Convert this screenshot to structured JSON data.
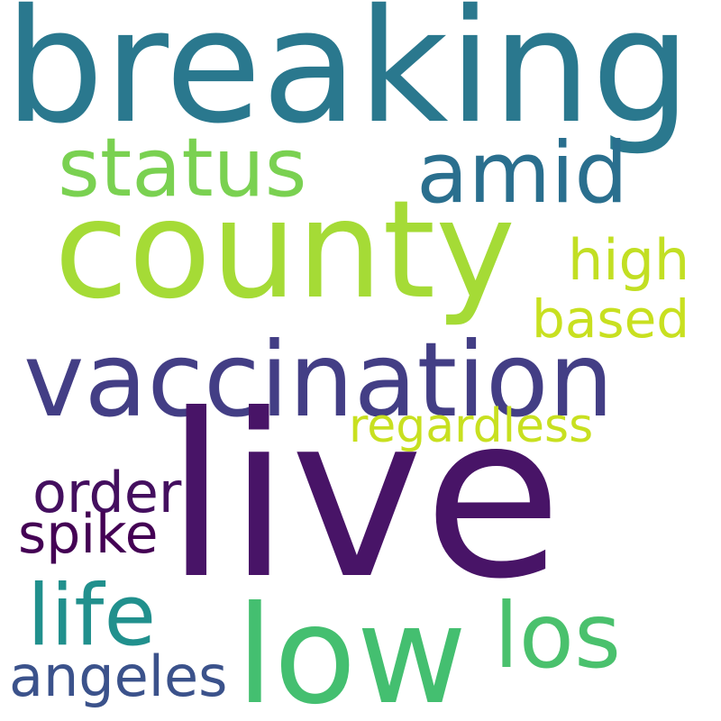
{
  "words": [
    {
      "key": "breaking",
      "text": "breaking",
      "color": "#2a788e"
    },
    {
      "key": "status",
      "text": "status",
      "color": "#7ad151"
    },
    {
      "key": "amid",
      "text": "amid",
      "color": "#2a6f8e"
    },
    {
      "key": "county",
      "text": "county",
      "color": "#a5db36"
    },
    {
      "key": "high",
      "text": "high",
      "color": "#c2df23"
    },
    {
      "key": "based",
      "text": "based",
      "color": "#c8e020"
    },
    {
      "key": "vaccination",
      "text": "vaccination",
      "color": "#433e85"
    },
    {
      "key": "regardless",
      "text": "regardless",
      "color": "#c8e020"
    },
    {
      "key": "live",
      "text": "live",
      "color": "#481467"
    },
    {
      "key": "order",
      "text": "order",
      "color": "#440f5f"
    },
    {
      "key": "spike",
      "text": "spike",
      "color": "#440154"
    },
    {
      "key": "life",
      "text": "life",
      "color": "#21908d"
    },
    {
      "key": "low",
      "text": "low",
      "color": "#44bf70"
    },
    {
      "key": "los",
      "text": "los",
      "color": "#4ac16d"
    },
    {
      "key": "angeles",
      "text": "angeles",
      "color": "#3b528b"
    }
  ]
}
